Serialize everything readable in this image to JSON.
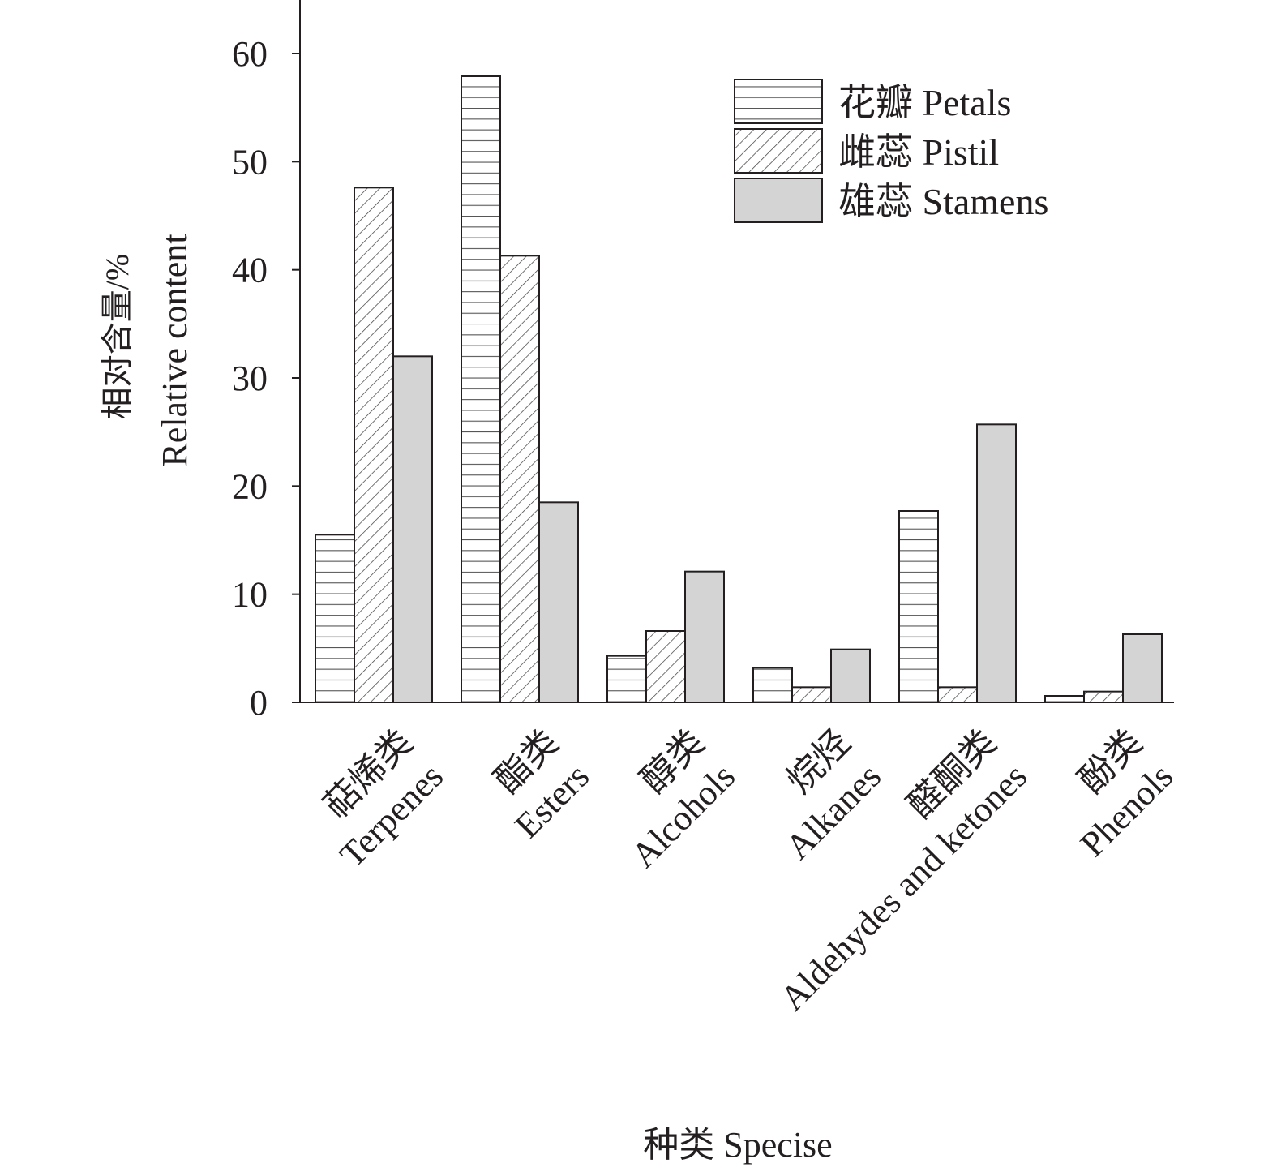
{
  "chart_data": {
    "type": "bar",
    "title": "",
    "ylabel_cn": "相对含量/%",
    "ylabel": "Relative content",
    "xlabel": "种类 Specise",
    "ylim": [
      0,
      65
    ],
    "yticks": [
      0,
      10,
      20,
      30,
      40,
      50,
      60
    ],
    "grid": false,
    "legend_position": "top-right",
    "categories": [
      {
        "cn": "萜烯类",
        "en": "Terpenes"
      },
      {
        "cn": "酯类",
        "en": "Esters"
      },
      {
        "cn": "醇类",
        "en": "Alcohols"
      },
      {
        "cn": "烷烃",
        "en": "Alkanes"
      },
      {
        "cn": "醛酮类",
        "en": "Aldehydes and ketones"
      },
      {
        "cn": "酚类",
        "en": "Phenols"
      }
    ],
    "series": [
      {
        "name": "花瓣 Petals",
        "pattern": "horizontal-lines",
        "values": [
          15.5,
          57.9,
          4.3,
          3.2,
          17.7,
          0.6
        ]
      },
      {
        "name": "雌蕊 Pistil",
        "pattern": "diagonal-lines",
        "values": [
          47.6,
          41.3,
          6.6,
          1.4,
          1.4,
          1.0
        ]
      },
      {
        "name": "雄蕊 Stamens",
        "pattern": "solid-gray",
        "color": "#d4d4d4",
        "values": [
          32.0,
          18.5,
          12.1,
          4.9,
          25.7,
          6.3
        ]
      }
    ]
  }
}
